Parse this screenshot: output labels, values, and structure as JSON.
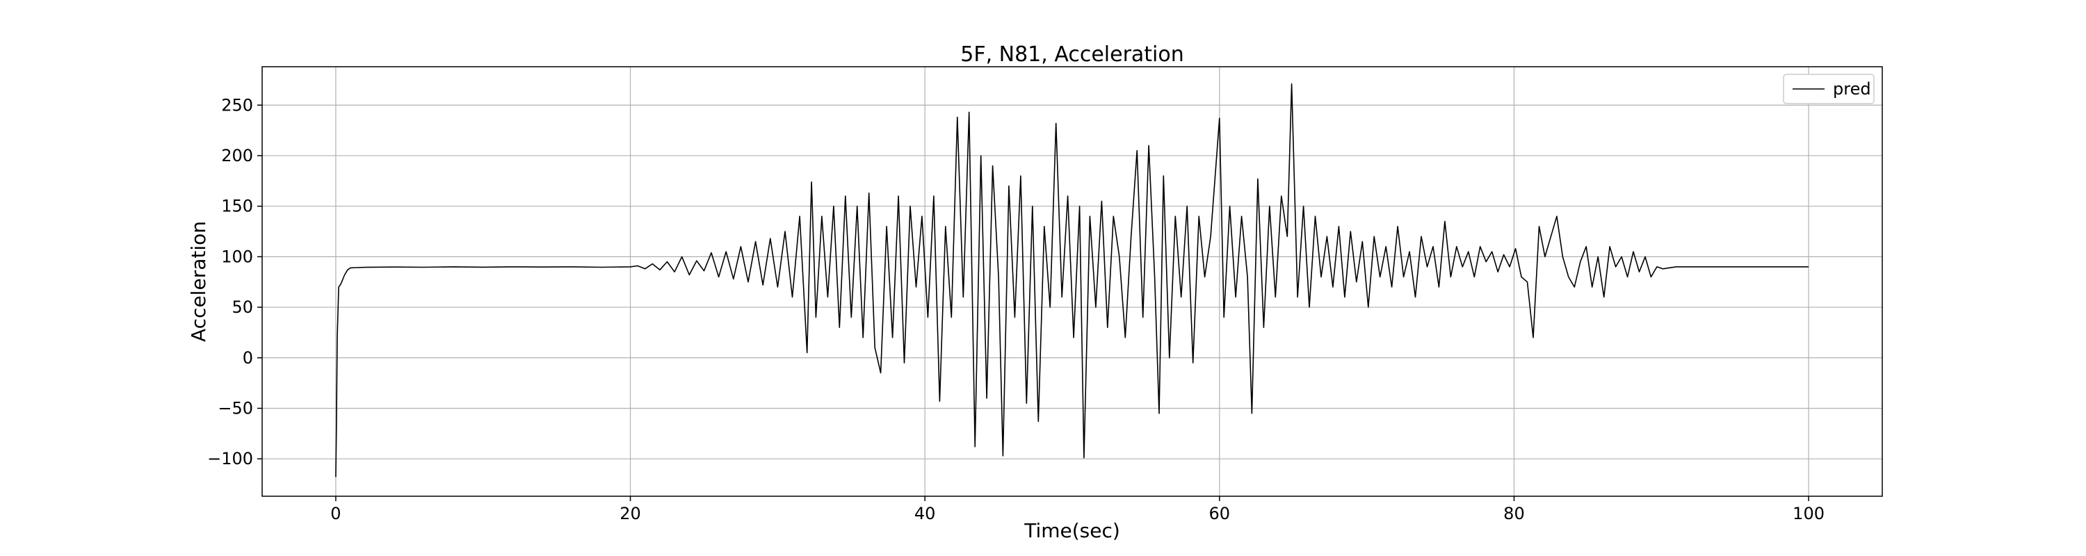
{
  "chart_data": {
    "type": "line",
    "title": "5F, N81, Acceleration",
    "xlabel": "Time(sec)",
    "ylabel": "Acceleration",
    "xlim": [
      -5,
      105
    ],
    "ylim": [
      -137,
      288
    ],
    "xticks": [
      0,
      20,
      40,
      60,
      80,
      100
    ],
    "yticks": [
      -100,
      -50,
      0,
      50,
      100,
      150,
      200,
      250
    ],
    "xtick_labels": [
      "0",
      "20",
      "40",
      "60",
      "80",
      "100"
    ],
    "ytick_labels": [
      "−100",
      "−50",
      "0",
      "50",
      "100",
      "150",
      "200",
      "250"
    ],
    "grid": true,
    "legend": {
      "position": "top-right",
      "entries": [
        "pred"
      ]
    },
    "series": [
      {
        "name": "pred",
        "color": "#000000",
        "points": [
          [
            0.0,
            -118
          ],
          [
            0.05,
            -60
          ],
          [
            0.1,
            20
          ],
          [
            0.2,
            70
          ],
          [
            0.3,
            72
          ],
          [
            0.4,
            75
          ],
          [
            0.6,
            82
          ],
          [
            0.8,
            87
          ],
          [
            1.0,
            89
          ],
          [
            2,
            89.5
          ],
          [
            4,
            89.8
          ],
          [
            6,
            89.6
          ],
          [
            8,
            90
          ],
          [
            10,
            89.7
          ],
          [
            12,
            90
          ],
          [
            14,
            89.8
          ],
          [
            16,
            90
          ],
          [
            18,
            89.6
          ],
          [
            20,
            90
          ],
          [
            20.5,
            91
          ],
          [
            21,
            88
          ],
          [
            21.5,
            93
          ],
          [
            22,
            87
          ],
          [
            22.5,
            95
          ],
          [
            23,
            85
          ],
          [
            23.5,
            100
          ],
          [
            24,
            82
          ],
          [
            24.5,
            96
          ],
          [
            25,
            86
          ],
          [
            25.5,
            104
          ],
          [
            26,
            80
          ],
          [
            26.5,
            105
          ],
          [
            27,
            78
          ],
          [
            27.5,
            110
          ],
          [
            28,
            75
          ],
          [
            28.5,
            115
          ],
          [
            29,
            72
          ],
          [
            29.5,
            118
          ],
          [
            30,
            70
          ],
          [
            30.5,
            125
          ],
          [
            31,
            60
          ],
          [
            31.5,
            140
          ],
          [
            32,
            5
          ],
          [
            32.3,
            174
          ],
          [
            32.6,
            40
          ],
          [
            33,
            140
          ],
          [
            33.4,
            60
          ],
          [
            33.8,
            150
          ],
          [
            34.2,
            30
          ],
          [
            34.6,
            160
          ],
          [
            35,
            40
          ],
          [
            35.4,
            150
          ],
          [
            35.8,
            20
          ],
          [
            36.2,
            163
          ],
          [
            36.6,
            10
          ],
          [
            37,
            -15
          ],
          [
            37.4,
            130
          ],
          [
            37.8,
            20
          ],
          [
            38.2,
            160
          ],
          [
            38.6,
            -5
          ],
          [
            39,
            150
          ],
          [
            39.4,
            70
          ],
          [
            39.8,
            140
          ],
          [
            40.2,
            40
          ],
          [
            40.6,
            160
          ],
          [
            41,
            -43
          ],
          [
            41.4,
            130
          ],
          [
            41.8,
            40
          ],
          [
            42.2,
            238
          ],
          [
            42.6,
            60
          ],
          [
            43,
            243
          ],
          [
            43.4,
            -88
          ],
          [
            43.8,
            200
          ],
          [
            44.2,
            -40
          ],
          [
            44.6,
            190
          ],
          [
            45,
            80
          ],
          [
            45.3,
            -97
          ],
          [
            45.7,
            170
          ],
          [
            46.1,
            40
          ],
          [
            46.5,
            180
          ],
          [
            46.9,
            -45
          ],
          [
            47.3,
            150
          ],
          [
            47.7,
            -63
          ],
          [
            48.1,
            130
          ],
          [
            48.5,
            50
          ],
          [
            48.9,
            232
          ],
          [
            49.3,
            60
          ],
          [
            49.7,
            160
          ],
          [
            50.1,
            20
          ],
          [
            50.5,
            150
          ],
          [
            50.8,
            -99
          ],
          [
            51.2,
            140
          ],
          [
            51.6,
            50
          ],
          [
            52,
            155
          ],
          [
            52.4,
            30
          ],
          [
            52.8,
            140
          ],
          [
            53.2,
            100
          ],
          [
            53.6,
            20
          ],
          [
            54,
            120
          ],
          [
            54.4,
            205
          ],
          [
            54.8,
            40
          ],
          [
            55.2,
            210
          ],
          [
            55.6,
            80
          ],
          [
            55.9,
            -55
          ],
          [
            56.2,
            180
          ],
          [
            56.6,
            0
          ],
          [
            57,
            140
          ],
          [
            57.4,
            60
          ],
          [
            57.8,
            150
          ],
          [
            58.2,
            -5
          ],
          [
            58.6,
            140
          ],
          [
            59,
            80
          ],
          [
            59.4,
            120
          ],
          [
            60,
            237
          ],
          [
            60.3,
            40
          ],
          [
            60.7,
            150
          ],
          [
            61.1,
            60
          ],
          [
            61.5,
            140
          ],
          [
            61.9,
            80
          ],
          [
            62.2,
            -55
          ],
          [
            62.6,
            177
          ],
          [
            63,
            30
          ],
          [
            63.4,
            150
          ],
          [
            63.8,
            60
          ],
          [
            64.2,
            160
          ],
          [
            64.6,
            120
          ],
          [
            64.9,
            271
          ],
          [
            65.3,
            60
          ],
          [
            65.7,
            150
          ],
          [
            66.1,
            50
          ],
          [
            66.5,
            140
          ],
          [
            66.9,
            80
          ],
          [
            67.3,
            120
          ],
          [
            67.7,
            70
          ],
          [
            68.1,
            130
          ],
          [
            68.5,
            60
          ],
          [
            68.9,
            125
          ],
          [
            69.3,
            75
          ],
          [
            69.7,
            115
          ],
          [
            70.1,
            50
          ],
          [
            70.5,
            120
          ],
          [
            70.9,
            80
          ],
          [
            71.3,
            110
          ],
          [
            71.7,
            70
          ],
          [
            72.1,
            130
          ],
          [
            72.5,
            80
          ],
          [
            72.9,
            105
          ],
          [
            73.3,
            60
          ],
          [
            73.7,
            120
          ],
          [
            74.1,
            90
          ],
          [
            74.5,
            110
          ],
          [
            74.9,
            70
          ],
          [
            75.3,
            135
          ],
          [
            75.7,
            80
          ],
          [
            76.1,
            110
          ],
          [
            76.5,
            90
          ],
          [
            76.9,
            105
          ],
          [
            77.3,
            80
          ],
          [
            77.7,
            110
          ],
          [
            78.1,
            95
          ],
          [
            78.5,
            105
          ],
          [
            78.9,
            85
          ],
          [
            79.3,
            102
          ],
          [
            79.7,
            90
          ],
          [
            80.1,
            108
          ],
          [
            80.5,
            80
          ],
          [
            80.9,
            75
          ],
          [
            81.3,
            20
          ],
          [
            81.7,
            130
          ],
          [
            82.1,
            100
          ],
          [
            82.5,
            120
          ],
          [
            82.9,
            140
          ],
          [
            83.3,
            100
          ],
          [
            83.7,
            80
          ],
          [
            84.1,
            70
          ],
          [
            84.5,
            95
          ],
          [
            84.9,
            110
          ],
          [
            85.3,
            70
          ],
          [
            85.7,
            100
          ],
          [
            86.1,
            60
          ],
          [
            86.5,
            110
          ],
          [
            86.9,
            90
          ],
          [
            87.3,
            100
          ],
          [
            87.7,
            80
          ],
          [
            88.1,
            105
          ],
          [
            88.5,
            85
          ],
          [
            88.9,
            100
          ],
          [
            89.3,
            80
          ],
          [
            89.7,
            90
          ],
          [
            90.1,
            88
          ],
          [
            91,
            90
          ],
          [
            93,
            90
          ],
          [
            95,
            90
          ],
          [
            97,
            90
          ],
          [
            100,
            90
          ]
        ]
      }
    ]
  }
}
